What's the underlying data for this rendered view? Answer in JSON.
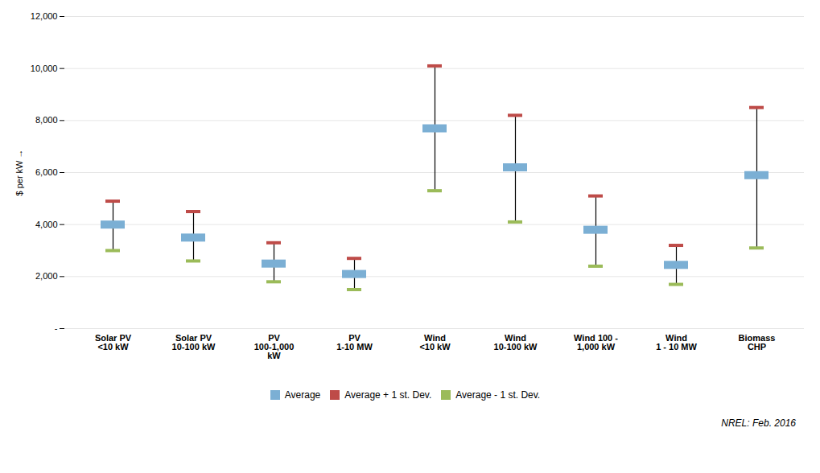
{
  "chart_data": {
    "type": "range",
    "ylabel": "$ per kW",
    "categories": [
      "Solar PV\n<10 kW",
      "Solar PV\n10-100 kW",
      "PV\n100-1,000\nkW",
      "PV\n1-10 MW",
      "Wind\n<10 kW",
      "Wind\n10-100 kW",
      "Wind 100 -\n1,000 kW",
      "Wind\n1 - 10 MW",
      "Biomass\nCHP"
    ],
    "series": [
      {
        "name": "Average",
        "color": "#7BAFD4",
        "values": [
          4000,
          3500,
          2500,
          2100,
          7700,
          6200,
          3800,
          2450,
          5900
        ]
      },
      {
        "name": "Average + 1 st. Dev.",
        "color": "#BE4B48",
        "values": [
          4900,
          4500,
          3300,
          2700,
          10100,
          8200,
          5100,
          3200,
          8500
        ]
      },
      {
        "name": "Average - 1 st. Dev.",
        "color": "#9BBB59",
        "values": [
          3000,
          2600,
          1800,
          1500,
          5300,
          4100,
          2400,
          1700,
          3100
        ]
      }
    ],
    "ylim": [
      0,
      12000
    ],
    "yticks": [
      {
        "value": 0,
        "label": "-"
      },
      {
        "value": 2000,
        "label": "2,000"
      },
      {
        "value": 4000,
        "label": "4,000"
      },
      {
        "value": 6000,
        "label": "6,000"
      },
      {
        "value": 8000,
        "label": "8,000"
      },
      {
        "value": 10000,
        "label": "10,000"
      },
      {
        "value": 12000,
        "label": "12,000"
      }
    ],
    "grid": true,
    "legend": "bottom",
    "annotations": [
      "NREL: Feb. 2016"
    ]
  }
}
